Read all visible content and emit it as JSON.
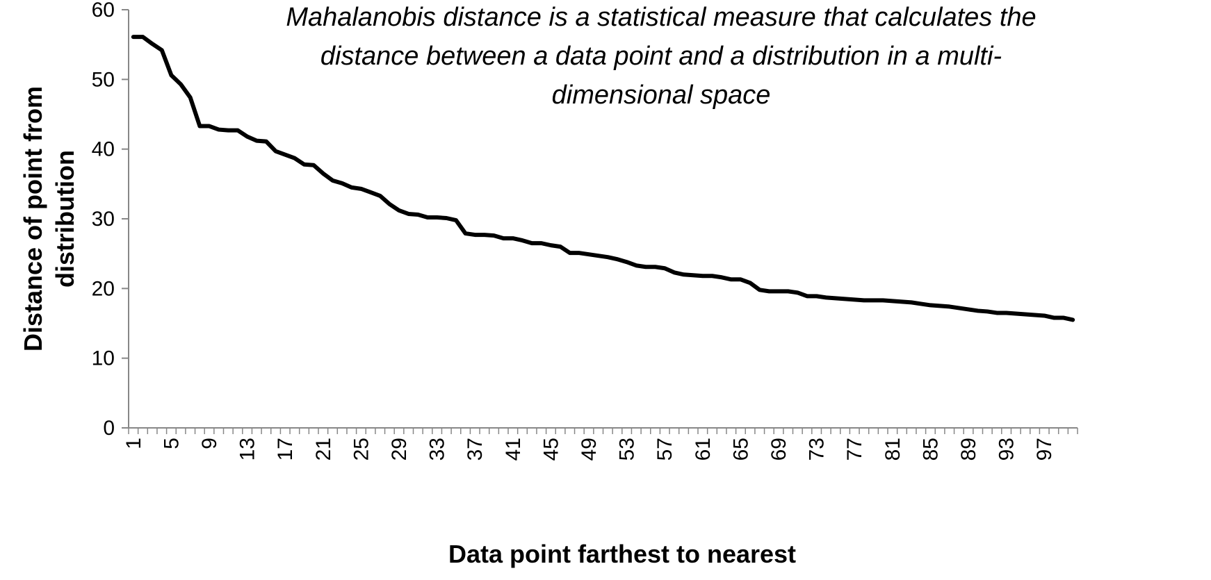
{
  "chart_data": {
    "type": "line",
    "title": "",
    "xlabel": "Data point farthest to nearest",
    "ylabel_lines": [
      "Distance of point from",
      "distribution"
    ],
    "annotation_lines": [
      "Mahalanobis distance is a statistical measure that calculates the",
      "distance between a data point and a distribution in a multi-",
      "dimensional space"
    ],
    "ylim": [
      0,
      60
    ],
    "y_ticks": [
      0,
      10,
      20,
      30,
      40,
      50,
      60
    ],
    "x_tick_labels": [
      "1",
      "5",
      "9",
      "13",
      "17",
      "21",
      "25",
      "29",
      "33",
      "37",
      "41",
      "45",
      "49",
      "53",
      "57",
      "61",
      "65",
      "69",
      "73",
      "77",
      "81",
      "85",
      "89",
      "93",
      "97"
    ],
    "grid": false,
    "legend": "none",
    "line_color": "#000000",
    "series": [
      {
        "x": [
          1,
          2,
          3,
          4,
          5,
          6,
          7,
          8,
          9,
          10,
          11,
          12,
          13,
          14,
          15,
          16,
          17,
          18,
          19,
          20,
          21,
          22,
          23,
          24,
          25,
          26,
          27,
          28,
          29,
          30,
          31,
          32,
          33,
          34,
          35,
          36,
          37,
          38,
          39,
          40,
          41,
          42,
          43,
          44,
          45,
          46,
          47,
          48,
          49,
          50,
          51,
          52,
          53,
          54,
          55,
          56,
          57,
          58,
          59,
          60,
          61,
          62,
          63,
          64,
          65,
          66,
          67,
          68,
          69,
          70,
          71,
          72,
          73,
          74,
          75,
          76,
          77,
          78,
          79,
          80,
          81,
          82,
          83,
          84,
          85,
          86,
          87,
          88,
          89,
          90,
          91,
          92,
          93,
          94,
          95,
          96,
          97,
          98,
          99,
          100
        ],
        "values": [
          56.1,
          56.1,
          55.1,
          54.2,
          50.6,
          49.3,
          47.4,
          43.3,
          43.3,
          42.8,
          42.7,
          42.7,
          41.8,
          41.2,
          41.1,
          39.7,
          39.2,
          38.7,
          37.8,
          37.7,
          36.5,
          35.5,
          35.1,
          34.5,
          34.3,
          33.8,
          33.3,
          32.1,
          31.2,
          30.7,
          30.6,
          30.2,
          30.2,
          30.1,
          29.8,
          27.9,
          27.7,
          27.7,
          27.6,
          27.2,
          27.2,
          26.9,
          26.5,
          26.5,
          26.2,
          26.0,
          25.1,
          25.1,
          24.9,
          24.7,
          24.5,
          24.2,
          23.8,
          23.3,
          23.1,
          23.1,
          22.9,
          22.3,
          22.0,
          21.9,
          21.8,
          21.8,
          21.6,
          21.3,
          21.3,
          20.8,
          19.8,
          19.6,
          19.6,
          19.6,
          19.4,
          18.9,
          18.9,
          18.7,
          18.6,
          18.5,
          18.4,
          18.3,
          18.3,
          18.3,
          18.2,
          18.1,
          18.0,
          17.8,
          17.6,
          17.5,
          17.4,
          17.2,
          17.0,
          16.8,
          16.7,
          16.5,
          16.5,
          16.4,
          16.3,
          16.2,
          16.1,
          15.8,
          15.8,
          15.5
        ]
      }
    ]
  }
}
